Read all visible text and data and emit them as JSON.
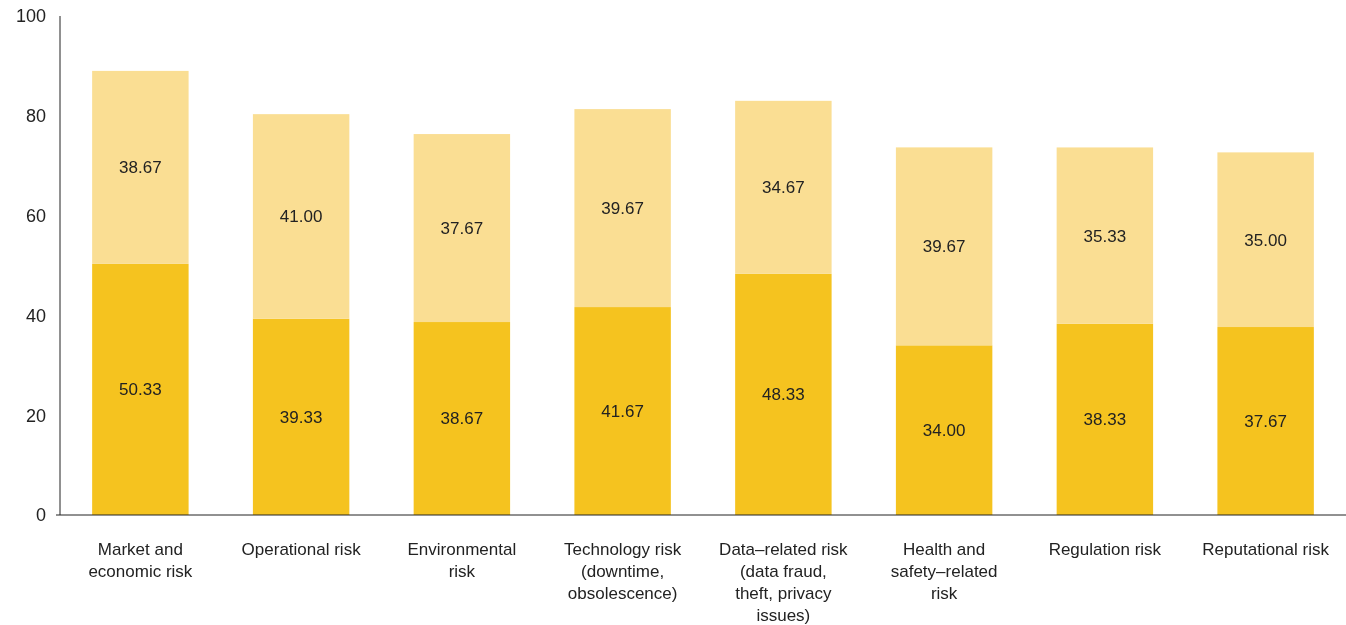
{
  "chart_data": {
    "type": "bar",
    "stacked": true,
    "categories": [
      "Market and economic risk",
      "Operational risk",
      "Environmental risk",
      "Technology risk (downtime, obsolescence)",
      "Data–related risk (data fraud, theft, privacy issues)",
      "Health and safety–related risk",
      "Regulation risk",
      "Reputational risk"
    ],
    "series": [
      {
        "color": "#f5c31f",
        "values": [
          50.33,
          39.33,
          38.67,
          41.67,
          48.33,
          34.0,
          38.33,
          37.67
        ],
        "value_labels": [
          "50.33",
          "39.33",
          "38.67",
          "41.67",
          "48.33",
          "34.00",
          "38.33",
          "37.67"
        ]
      },
      {
        "color": "#fade93",
        "values": [
          38.67,
          41.0,
          37.67,
          39.67,
          34.67,
          39.67,
          35.33,
          35.0
        ],
        "value_labels": [
          "38.67",
          "41.00",
          "37.67",
          "39.67",
          "34.67",
          "39.67",
          "35.33",
          "35.00"
        ]
      }
    ],
    "ylim": [
      0,
      100
    ],
    "yticks": [
      0,
      20,
      40,
      60,
      80,
      100
    ]
  }
}
